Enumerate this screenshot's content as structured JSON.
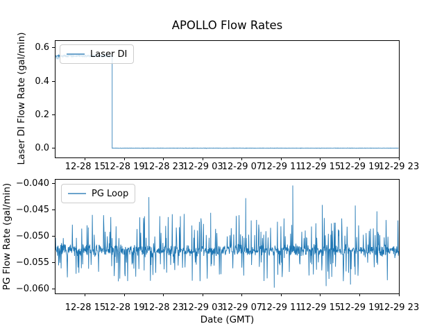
{
  "figure": {
    "title": "APOLLO Flow Rates",
    "xlabel": "Date (GMT)",
    "background": "#ffffff",
    "line_color": "#1f77b4",
    "legend_sample_color": "#6ba3cc"
  },
  "chart_data": [
    {
      "type": "line",
      "title": "APOLLO Flow Rates",
      "ylabel": "Laser DI Flow Rate (gal/min)",
      "legend": {
        "label": "Laser DI",
        "location": "upper left"
      },
      "x_tick_labels": [
        "12-28 15",
        "12-28 19",
        "12-28 23",
        "12-29 03",
        "12-29 07",
        "12-29 11",
        "12-29 15",
        "12-29 19",
        "12-29 23"
      ],
      "y_ticks": [
        0.0,
        0.2,
        0.4,
        0.6
      ],
      "y_tick_labels": [
        "0.0",
        "0.2",
        "0.4",
        "0.6"
      ],
      "ylim": [
        -0.0545,
        0.6455
      ],
      "grid": false,
      "series": [
        {
          "name": "Laser DI",
          "pattern": "noisy plateau then step drop to zero",
          "plateau_mean": 0.555,
          "plateau_noise_high": 0.605,
          "plateau_noise_low": 0.515,
          "plateau_end_frac": 0.165,
          "drop_time_label": "~12-28 17:40",
          "after_drop_mean": 0.002,
          "after_drop_noise": 0.003
        }
      ]
    },
    {
      "type": "line",
      "ylabel": "PG Flow Rate (gal/min)",
      "legend": {
        "label": "PG Loop",
        "location": "upper left"
      },
      "x_tick_labels": [
        "12-28 15",
        "12-28 19",
        "12-28 23",
        "12-29 03",
        "12-29 07",
        "12-29 11",
        "12-29 15",
        "12-29 19",
        "12-29 23"
      ],
      "y_ticks": [
        -0.04,
        -0.045,
        -0.05,
        -0.055,
        -0.06
      ],
      "y_tick_labels": [
        "−0.040",
        "−0.045",
        "−0.050",
        "−0.055",
        "−0.060"
      ],
      "ylim": [
        -0.0608,
        -0.0392
      ],
      "grid": false,
      "series": [
        {
          "name": "PG Loop",
          "pattern": "dense noise band with frequent spikes",
          "band_mean": -0.0526,
          "band_halfwidth": 0.0023,
          "typical_up_spike": -0.047,
          "typical_down_spike": -0.0582,
          "notable_spikes": [
            {
              "x_frac": 0.183,
              "value": -0.0585
            },
            {
              "x_frac": 0.272,
              "value": -0.0425
            },
            {
              "x_frac": 0.421,
              "value": -0.0583
            },
            {
              "x_frac": 0.452,
              "value": -0.0455
            },
            {
              "x_frac": 0.554,
              "value": -0.0427
            },
            {
              "x_frac": 0.637,
              "value": -0.0597
            },
            {
              "x_frac": 0.691,
              "value": -0.0403
            },
            {
              "x_frac": 0.777,
              "value": -0.044
            },
            {
              "x_frac": 0.788,
              "value": -0.0594
            },
            {
              "x_frac": 0.859,
              "value": -0.0591
            },
            {
              "x_frac": 0.873,
              "value": -0.0441
            },
            {
              "x_frac": 0.936,
              "value": -0.0452
            }
          ]
        }
      ]
    }
  ]
}
